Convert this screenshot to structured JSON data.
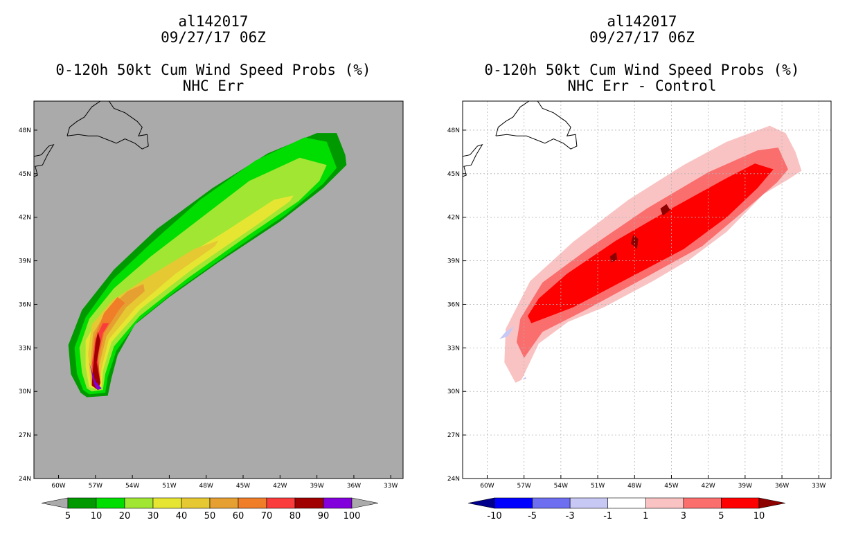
{
  "panels": [
    {
      "title_line1": "al142017",
      "title_line2": "09/27/17 06Z",
      "title_line3": "0-120h 50kt Cum Wind Speed Probs (%)",
      "title_line4": "NHC Err",
      "background_color": "#aaaaaa"
    },
    {
      "title_line1": "al142017",
      "title_line2": "09/27/17 06Z",
      "title_line3": "0-120h 50kt Cum Wind Speed Probs (%)",
      "title_line4": "NHC Err - Control",
      "background_color": "#ffffff"
    }
  ],
  "chart_data": [
    {
      "type": "filled-contour-map",
      "title": "0-120h 50kt Cum Wind Speed Probs (%)",
      "subtitle": "NHC Err",
      "x_ticks": [
        "60W",
        "57W",
        "54W",
        "51W",
        "48W",
        "45W",
        "42W",
        "39W",
        "36W",
        "33W"
      ],
      "y_ticks": [
        "48N",
        "45N",
        "42N",
        "39N",
        "36N",
        "33N",
        "30N",
        "27N",
        "24N"
      ],
      "lon_range": [
        -62,
        -32
      ],
      "lat_range": [
        24,
        50
      ],
      "colorbar_levels": [
        "5",
        "10",
        "20",
        "30",
        "40",
        "50",
        "60",
        "70",
        "80",
        "90",
        "100"
      ],
      "colorbar_colors": [
        "#aaaaaa",
        "#009a00",
        "#00dd00",
        "#a0e632",
        "#e6e632",
        "#e6c832",
        "#e6a032",
        "#f07d28",
        "#fa3c3c",
        "#a00000",
        "#8200dc",
        "#aaaaaa"
      ],
      "contours": [
        {
          "level": 5,
          "color": "#009a00",
          "path": [
            [
              -57.7,
              29.6
            ],
            [
              -56,
              29.7
            ],
            [
              -55.7,
              30.9
            ],
            [
              -55.2,
              32.5
            ],
            [
              -53.8,
              34.6
            ],
            [
              -51,
              36.5
            ],
            [
              -47,
              38.9
            ],
            [
              -42,
              41.7
            ],
            [
              -38.5,
              44.0
            ],
            [
              -36.6,
              45.6
            ],
            [
              -36.7,
              46.3
            ],
            [
              -37.4,
              47.8
            ],
            [
              -39,
              47.8
            ],
            [
              -43,
              46.4
            ],
            [
              -47.5,
              44.0
            ],
            [
              -52,
              41.2
            ],
            [
              -55.5,
              38.4
            ],
            [
              -58.1,
              35.6
            ],
            [
              -59.2,
              33.2
            ],
            [
              -59.0,
              31.2
            ],
            [
              -58.2,
              29.9
            ]
          ]
        },
        {
          "level": 10,
          "color": "#00dd00",
          "path": [
            [
              -57.5,
              29.8
            ],
            [
              -56.2,
              29.9
            ],
            [
              -56.0,
              31.0
            ],
            [
              -55.3,
              32.8
            ],
            [
              -53.6,
              34.8
            ],
            [
              -50.5,
              36.9
            ],
            [
              -46,
              39.6
            ],
            [
              -41.5,
              42.2
            ],
            [
              -38.5,
              44.3
            ],
            [
              -37.4,
              45.4
            ],
            [
              -38.2,
              47.2
            ],
            [
              -40,
              47.5
            ],
            [
              -44,
              45.9
            ],
            [
              -48.5,
              43.2
            ],
            [
              -52.5,
              40.2
            ],
            [
              -55.6,
              37.7
            ],
            [
              -57.8,
              35.1
            ],
            [
              -58.7,
              33.0
            ],
            [
              -58.5,
              31.2
            ],
            [
              -58.0,
              30.1
            ]
          ]
        },
        {
          "level": 20,
          "color": "#a0e632",
          "path": [
            [
              -57.3,
              30.0
            ],
            [
              -56.4,
              30.1
            ],
            [
              -56.2,
              31.2
            ],
            [
              -55.5,
              33.1
            ],
            [
              -53.4,
              35.2
            ],
            [
              -49.5,
              37.8
            ],
            [
              -44.5,
              40.8
            ],
            [
              -40.5,
              43.1
            ],
            [
              -38.8,
              44.5
            ],
            [
              -38.2,
              45.6
            ],
            [
              -40.4,
              46.1
            ],
            [
              -44.5,
              44.5
            ],
            [
              -48.5,
              41.9
            ],
            [
              -52.5,
              39.3
            ],
            [
              -55.5,
              37.1
            ],
            [
              -57.5,
              35.0
            ],
            [
              -58.3,
              33.0
            ],
            [
              -58.1,
              31.3
            ],
            [
              -57.7,
              30.2
            ]
          ]
        },
        {
          "level": 30,
          "color": "#e6e632",
          "path": [
            [
              -57.1,
              30.2
            ],
            [
              -56.5,
              30.3
            ],
            [
              -56.4,
              31.4
            ],
            [
              -55.7,
              33.4
            ],
            [
              -53.3,
              35.7
            ],
            [
              -49,
              38.5
            ],
            [
              -44,
              41.4
            ],
            [
              -41.2,
              43.1
            ],
            [
              -40.9,
              43.5
            ],
            [
              -42.5,
              43.2
            ],
            [
              -46.5,
              41.0
            ],
            [
              -50.5,
              38.9
            ],
            [
              -54.1,
              37.1
            ],
            [
              -56.6,
              35.3
            ],
            [
              -57.8,
              33.5
            ],
            [
              -57.8,
              31.7
            ],
            [
              -57.5,
              30.3
            ]
          ]
        },
        {
          "level": 40,
          "color": "#e6c832",
          "path": [
            [
              -57.0,
              30.3
            ],
            [
              -56.6,
              30.4
            ],
            [
              -56.5,
              31.6
            ],
            [
              -55.9,
              33.6
            ],
            [
              -53.7,
              35.8
            ],
            [
              -50.5,
              38.1
            ],
            [
              -47.3,
              40.0
            ],
            [
              -47.0,
              40.4
            ],
            [
              -49,
              39.8
            ],
            [
              -52.5,
              38.0
            ],
            [
              -55.6,
              36.3
            ],
            [
              -57.3,
              34.6
            ],
            [
              -57.6,
              32.6
            ],
            [
              -57.4,
              30.5
            ]
          ]
        },
        {
          "level": 50,
          "color": "#e6a032",
          "path": [
            [
              -56.9,
              30.4
            ],
            [
              -56.7,
              31.8
            ],
            [
              -56.1,
              33.8
            ],
            [
              -54.5,
              35.8
            ],
            [
              -53.0,
              36.9
            ],
            [
              -53.1,
              37.4
            ],
            [
              -54.4,
              36.9
            ],
            [
              -56.0,
              35.6
            ],
            [
              -57.2,
              34.0
            ],
            [
              -57.4,
              32.0
            ],
            [
              -57.2,
              30.5
            ]
          ]
        },
        {
          "level": 60,
          "color": "#f07d28",
          "path": [
            [
              -56.9,
              30.5
            ],
            [
              -56.8,
              32.0
            ],
            [
              -56.3,
              34.0
            ],
            [
              -55.1,
              35.6
            ],
            [
              -54.6,
              36.1
            ],
            [
              -55.2,
              36.5
            ],
            [
              -56.3,
              35.4
            ],
            [
              -57.1,
              33.7
            ],
            [
              -57.3,
              31.8
            ],
            [
              -57.1,
              30.6
            ]
          ]
        },
        {
          "level": 70,
          "color": "#fa3c3c",
          "path": [
            [
              -56.8,
              30.1
            ],
            [
              -56.6,
              30.6
            ],
            [
              -56.8,
              32.4
            ],
            [
              -56.4,
              34.0
            ],
            [
              -55.9,
              34.7
            ],
            [
              -56.4,
              34.7
            ],
            [
              -57.0,
              33.6
            ],
            [
              -57.3,
              31.8
            ],
            [
              -57.3,
              30.4
            ]
          ]
        },
        {
          "level": 80,
          "color": "#a00000",
          "path": [
            [
              -56.8,
              30.1
            ],
            [
              -56.6,
              30.6
            ],
            [
              -56.9,
              32.0
            ],
            [
              -56.6,
              33.5
            ],
            [
              -56.8,
              34.1
            ],
            [
              -57.0,
              33.3
            ],
            [
              -57.2,
              31.6
            ],
            [
              -57.3,
              30.4
            ]
          ]
        },
        {
          "level": 90,
          "color": "#8200dc",
          "path": [
            [
              -56.8,
              30.1
            ],
            [
              -56.5,
              30.2
            ],
            [
              -57.0,
              30.7
            ],
            [
              -57.3,
              31.4
            ],
            [
              -57.5,
              32.0
            ],
            [
              -57.2,
              30.8
            ],
            [
              -57.0,
              30.3
            ]
          ]
        }
      ]
    },
    {
      "type": "filled-contour-map",
      "title": "0-120h 50kt Cum Wind Speed Probs (%)",
      "subtitle": "NHC Err - Control",
      "x_ticks": [
        "60W",
        "57W",
        "54W",
        "51W",
        "48W",
        "45W",
        "42W",
        "39W",
        "36W",
        "33W"
      ],
      "y_ticks": [
        "48N",
        "45N",
        "42N",
        "39N",
        "36N",
        "33N",
        "30N",
        "27N",
        "24N"
      ],
      "lon_range": [
        -62,
        -32
      ],
      "lat_range": [
        24,
        50
      ],
      "colorbar_levels": [
        "-10",
        "-5",
        "-3",
        "-1",
        "1",
        "3",
        "5",
        "10"
      ],
      "colorbar_colors": [
        "#00008c",
        "#0000ff",
        "#6e6ef0",
        "#c8c8f5",
        "#ffffff",
        "#fac3c3",
        "#fa6e6e",
        "#ff0000",
        "#8c0000"
      ],
      "contours": [
        {
          "level": 1,
          "color": "#fac3c3",
          "path": [
            [
              -57.7,
              30.6
            ],
            [
              -57.2,
              30.8
            ],
            [
              -55.8,
              33.3
            ],
            [
              -53.4,
              34.8
            ],
            [
              -50.5,
              35.8
            ],
            [
              -46.5,
              37.6
            ],
            [
              -43.5,
              39.1
            ],
            [
              -40.5,
              41.0
            ],
            [
              -37.5,
              43.6
            ],
            [
              -35.5,
              44.6
            ],
            [
              -34.4,
              45.2
            ],
            [
              -34.9,
              46.5
            ],
            [
              -35.7,
              47.8
            ],
            [
              -37,
              48.3
            ],
            [
              -40.5,
              47.2
            ],
            [
              -44,
              45.6
            ],
            [
              -48.5,
              43.2
            ],
            [
              -53,
              40.3
            ],
            [
              -56.5,
              37.6
            ],
            [
              -58.5,
              34.3
            ],
            [
              -58.6,
              32.0
            ]
          ]
        },
        {
          "level": 3,
          "color": "#fa6e6e",
          "path": [
            [
              -57.0,
              32.3
            ],
            [
              -55.5,
              34.1
            ],
            [
              -52,
              35.6
            ],
            [
              -47,
              37.9
            ],
            [
              -42.5,
              40.0
            ],
            [
              -39,
              42.5
            ],
            [
              -36.4,
              44.4
            ],
            [
              -35.5,
              45.3
            ],
            [
              -36.3,
              46.8
            ],
            [
              -38.0,
              46.6
            ],
            [
              -42,
              45.1
            ],
            [
              -47,
              42.6
            ],
            [
              -51.5,
              40.0
            ],
            [
              -55.5,
              37.5
            ],
            [
              -57.3,
              35.0
            ],
            [
              -57.6,
              33.4
            ]
          ]
        },
        {
          "level": 5,
          "color": "#ff0000",
          "path": [
            [
              -56.4,
              34.7
            ],
            [
              -53,
              35.8
            ],
            [
              -48.5,
              37.8
            ],
            [
              -44,
              39.8
            ],
            [
              -40.5,
              42.0
            ],
            [
              -38,
              44.0
            ],
            [
              -36.7,
              45.3
            ],
            [
              -38.2,
              45.7
            ],
            [
              -40.5,
              44.7
            ],
            [
              -45,
              42.6
            ],
            [
              -49.5,
              40.4
            ],
            [
              -53.5,
              38.1
            ],
            [
              -55.8,
              36.4
            ],
            [
              -56.7,
              35.2
            ]
          ]
        },
        {
          "level": 10,
          "color": "#8c0000",
          "path": [
            [
              -48.3,
              40.2
            ],
            [
              -47.8,
              39.8
            ],
            [
              -47.7,
              40.5
            ],
            [
              -48.1,
              40.8
            ]
          ]
        },
        {
          "level": 10,
          "color": "#8c0000",
          "path": [
            [
              -49.9,
              38.9
            ],
            [
              -49.4,
              39.1
            ],
            [
              -49.5,
              39.6
            ],
            [
              -50.0,
              39.3
            ]
          ]
        },
        {
          "level": 10,
          "color": "#8c0000",
          "path": [
            [
              -45.7,
              42.1
            ],
            [
              -45.1,
              42.5
            ],
            [
              -45.4,
              42.9
            ],
            [
              -45.9,
              42.6
            ]
          ]
        },
        {
          "level": -1,
          "color": "#c8c8f5",
          "path": [
            [
              -59.0,
              33.6
            ],
            [
              -58.5,
              34.1
            ],
            [
              -57.8,
              34.5
            ],
            [
              -58.3,
              33.8
            ]
          ]
        },
        {
          "level": -1,
          "color": "#c8c8f5",
          "path": [
            [
              -57.1,
              30.8
            ],
            [
              -56.8,
              30.9
            ],
            [
              -56.9,
              31.0
            ]
          ]
        }
      ]
    }
  ]
}
